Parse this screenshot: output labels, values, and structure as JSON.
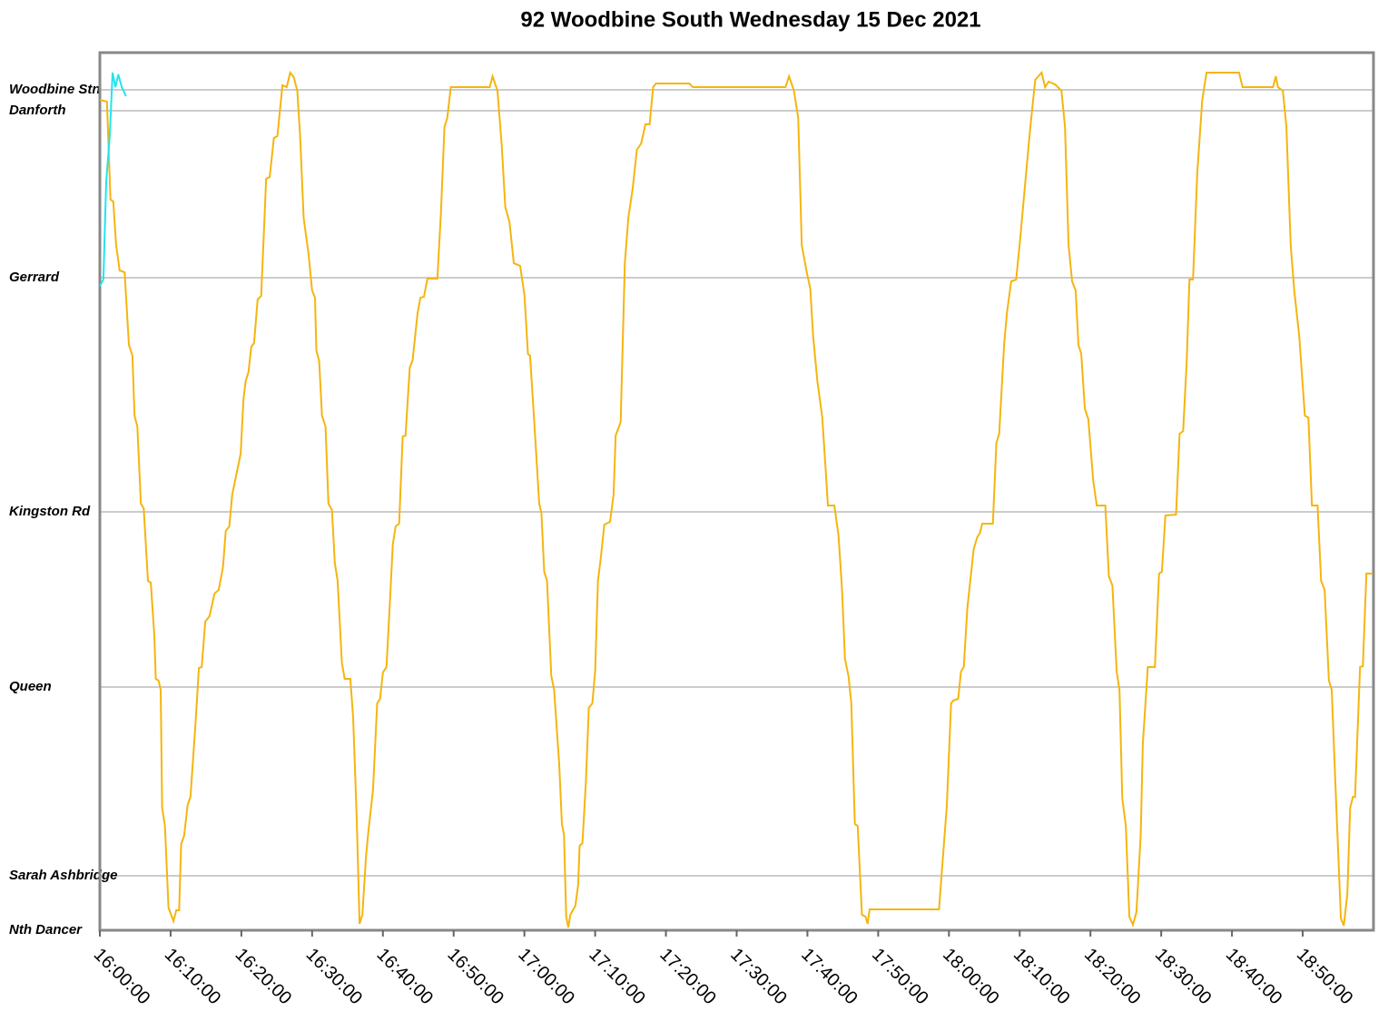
{
  "chart_data": {
    "type": "line",
    "title": "92 Woodbine South Wednesday 15 Dec 2021",
    "xlim": [
      0,
      180
    ],
    "xticks": [
      {
        "value": 0,
        "label": "16:00:00"
      },
      {
        "value": 10,
        "label": "16:10:00"
      },
      {
        "value": 20,
        "label": "16:20:00"
      },
      {
        "value": 30,
        "label": "16:30:00"
      },
      {
        "value": 40,
        "label": "16:40:00"
      },
      {
        "value": 50,
        "label": "16:50:00"
      },
      {
        "value": 60,
        "label": "17:00:00"
      },
      {
        "value": 70,
        "label": "17:10:00"
      },
      {
        "value": 80,
        "label": "17:20:00"
      },
      {
        "value": 90,
        "label": "17:30:00"
      },
      {
        "value": 100,
        "label": "17:40:00"
      },
      {
        "value": 110,
        "label": "17:50:00"
      },
      {
        "value": 120,
        "label": "18:00:00"
      },
      {
        "value": 130,
        "label": "18:10:00"
      },
      {
        "value": 140,
        "label": "18:20:00"
      },
      {
        "value": 150,
        "label": "18:30:00"
      },
      {
        "value": 160,
        "label": "18:40:00"
      },
      {
        "value": 170,
        "label": "18:50:00"
      }
    ],
    "ylim": [
      0,
      967
    ],
    "yticks": [
      {
        "value": 926,
        "label": "Woodbine Stn"
      },
      {
        "value": 903,
        "label": "Danforth"
      },
      {
        "value": 719,
        "label": "Gerrard"
      },
      {
        "value": 461,
        "label": "Kingston Rd"
      },
      {
        "value": 268,
        "label": "Queen"
      },
      {
        "value": 60,
        "label": "Sarah Ashbridge"
      },
      {
        "value": 0,
        "label": "Nth Dancer"
      }
    ],
    "grid": true,
    "series": [
      {
        "color": "#f5b50f",
        "x": [
          0,
          1.0,
          1.5,
          1.9,
          2.3,
          2.8,
          3.5,
          4.1,
          4.6,
          4.9,
          5.3,
          5.8,
          6.2,
          6.8,
          7.2,
          7.7,
          7.9,
          8.3,
          8.6,
          8.8,
          9.2,
          9.7,
          10.4,
          10.8,
          11.2,
          11.5,
          11.9,
          12.4,
          12.8,
          13.5,
          14.0,
          14.4,
          14.9,
          15.5,
          16.2,
          16.8,
          17.4,
          17.8,
          18.3,
          18.7,
          19.5,
          19.9,
          20.3,
          20.6,
          21.0,
          21.4,
          21.8,
          22.3,
          22.8,
          23.5,
          24.0,
          24.6,
          25.1,
          25.8,
          26.4,
          26.9,
          27.4,
          27.9,
          28.3,
          28.8,
          29.5,
          30.0,
          30.4,
          30.6,
          31.0,
          31.4,
          31.9,
          32.3,
          32.8,
          33.2,
          33.6,
          34.2,
          34.6,
          35.4,
          35.8,
          36.3,
          36.7,
          37.1,
          37.6,
          37.9,
          38.6,
          39.2,
          39.6,
          40.0,
          40.5,
          41.0,
          41.4,
          41.8,
          42.3,
          42.8,
          43.2,
          43.8,
          44.2,
          44.9,
          45.3,
          45.8,
          46.3,
          47.7,
          48.2,
          48.7,
          49.1,
          49.6,
          55.1,
          55.5,
          56.2,
          56.8,
          57.3,
          57.9,
          58.5,
          59.4,
          60.0,
          60.5,
          60.8,
          61.4,
          62.1,
          62.4,
          62.8,
          63.2,
          63.8,
          64.2,
          64.9,
          65.3,
          65.6,
          65.9,
          66.2,
          66.5,
          67.2,
          67.6,
          67.8,
          68.2,
          68.7,
          69.1,
          69.6,
          70.0,
          70.4,
          70.8,
          71.3,
          72.1,
          72.6,
          72.9,
          73.6,
          74.2,
          74.7,
          75.3,
          75.9,
          76.5,
          77.1,
          77.7,
          78.2,
          78.6,
          83.3,
          83.8,
          96.9,
          97.4,
          98.1,
          98.7,
          99.2,
          99.9,
          100.4,
          100.8,
          101.4,
          102.1,
          102.6,
          102.9,
          103.8,
          104.4,
          104.9,
          105.3,
          105.8,
          106.2,
          106.7,
          107.1,
          107.7,
          108.2,
          108.5,
          108.8,
          118.6,
          119.1,
          119.7,
          120.3,
          120.6,
          121.3,
          121.7,
          122.1,
          122.6,
          123.5,
          124.0,
          124.4,
          124.7,
          126.2,
          126.7,
          127.1,
          127.8,
          128.2,
          128.8,
          129.5,
          130.1,
          130.8,
          131.5,
          132.2,
          133.1,
          133.6,
          134.1,
          135.0,
          135.9,
          136.4,
          136.9,
          137.4,
          137.9,
          138.3,
          138.7,
          139.2,
          139.7,
          140.4,
          140.9,
          142.1,
          142.6,
          143.1,
          143.7,
          144.1,
          144.5,
          145.0,
          145.5,
          146.0,
          146.5,
          147.1,
          147.4,
          148.1,
          149.1,
          149.7,
          150.1,
          150.6,
          152.1,
          152.6,
          153.1,
          153.6,
          154.0,
          154.5,
          155.1,
          155.8,
          156.4,
          161.0,
          161.5,
          165.8,
          166.2,
          166.5,
          167.2,
          167.7,
          168.3,
          168.8,
          169.5,
          170.3,
          170.8,
          171.3,
          172.1,
          172.6,
          173.1,
          173.7,
          174.1,
          174.7,
          175.4,
          175.8,
          176.3,
          176.7,
          177.1,
          177.4,
          178.1,
          178.5,
          179.0,
          179.9
        ],
        "values": [
          915,
          913,
          805,
          803,
          755,
          727,
          725,
          645,
          633,
          567,
          555,
          470,
          465,
          385,
          383,
          325,
          277,
          275,
          265,
          135,
          115,
          25,
          10,
          22,
          22,
          95,
          104,
          138,
          147,
          225,
          289,
          290,
          340,
          346,
          371,
          375,
          400,
          440,
          445,
          480,
          510,
          525,
          585,
          605,
          615,
          643,
          647,
          695,
          699,
          828,
          830,
          873,
          875,
          931,
          929,
          945,
          940,
          925,
          875,
          785,
          745,
          705,
          697,
          639,
          627,
          567,
          555,
          470,
          463,
          405,
          385,
          295,
          277,
          277,
          235,
          125,
          7,
          17,
          80,
          105,
          155,
          250,
          255,
          284,
          290,
          363,
          425,
          445,
          448,
          544,
          545,
          620,
          628,
          680,
          697,
          698,
          718,
          718,
          790,
          885,
          895,
          929,
          929,
          941,
          925,
          865,
          797,
          780,
          735,
          732,
          700,
          635,
          633,
          559,
          470,
          460,
          395,
          385,
          280,
          265,
          185,
          117,
          105,
          15,
          3,
          17,
          27,
          50,
          93,
          96,
          165,
          245,
          250,
          285,
          385,
          410,
          447,
          450,
          480,
          545,
          560,
          735,
          785,
          817,
          860,
          867,
          888,
          888,
          929,
          933,
          933,
          929,
          929,
          941,
          925,
          895,
          755,
          725,
          707,
          655,
          605,
          565,
          505,
          468,
          468,
          435,
          375,
          299,
          280,
          250,
          117,
          115,
          17,
          15,
          7,
          23,
          23,
          75,
          137,
          250,
          253,
          255,
          285,
          290,
          355,
          420,
          433,
          438,
          448,
          448,
          537,
          547,
          645,
          680,
          715,
          717,
          765,
          825,
          885,
          937,
          945,
          929,
          935,
          932,
          925,
          885,
          755,
          715,
          705,
          645,
          635,
          575,
          563,
          495,
          468,
          468,
          390,
          380,
          285,
          265,
          145,
          115,
          15,
          6,
          20,
          105,
          205,
          290,
          290,
          393,
          395,
          457,
          458,
          547,
          550,
          625,
          717,
          717,
          835,
          915,
          945,
          945,
          929,
          929,
          941,
          929,
          925,
          885,
          755,
          705,
          655,
          567,
          565,
          468,
          468,
          385,
          375,
          275,
          265,
          145,
          13,
          5,
          40,
          135,
          147,
          147,
          290,
          291,
          393,
          393
        ]
      },
      {
        "color": "#1fe6f0",
        "x": [
          0,
          0.5,
          0.9,
          1.4,
          1.8,
          2.2,
          2.6,
          3.1,
          3.7
        ],
        "values": [
          710,
          717,
          825,
          875,
          945,
          929,
          943,
          929,
          919
        ]
      }
    ]
  }
}
